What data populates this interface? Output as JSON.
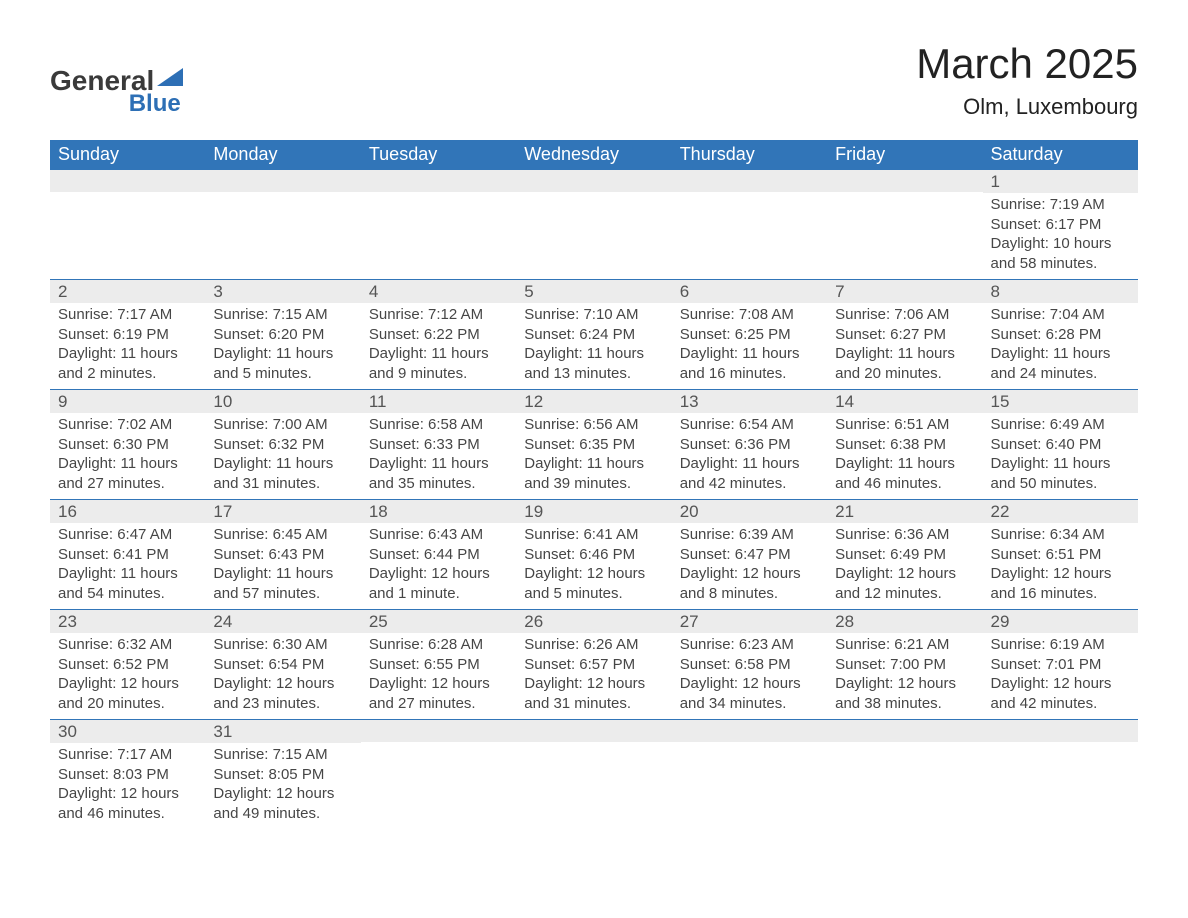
{
  "logo": {
    "line1": "General",
    "line2": "Blue"
  },
  "title": "March 2025",
  "subtitle": "Olm, Luxembourg",
  "weekdays": [
    "Sunday",
    "Monday",
    "Tuesday",
    "Wednesday",
    "Thursday",
    "Friday",
    "Saturday"
  ],
  "colors": {
    "header_bg": "#3175b8",
    "header_text": "#ffffff",
    "daynum_bg": "#ececec",
    "row_border": "#3175b8",
    "body_text": "#464646",
    "logo_blue": "#2d6fb5"
  },
  "fontsizes": {
    "title": 42,
    "subtitle": 22,
    "weekday": 18,
    "daynum": 17,
    "body": 15
  },
  "weeks": [
    [
      null,
      null,
      null,
      null,
      null,
      null,
      {
        "n": "1",
        "sunrise": "7:19 AM",
        "sunset": "6:17 PM",
        "daylight": "10 hours and 58 minutes."
      }
    ],
    [
      {
        "n": "2",
        "sunrise": "7:17 AM",
        "sunset": "6:19 PM",
        "daylight": "11 hours and 2 minutes."
      },
      {
        "n": "3",
        "sunrise": "7:15 AM",
        "sunset": "6:20 PM",
        "daylight": "11 hours and 5 minutes."
      },
      {
        "n": "4",
        "sunrise": "7:12 AM",
        "sunset": "6:22 PM",
        "daylight": "11 hours and 9 minutes."
      },
      {
        "n": "5",
        "sunrise": "7:10 AM",
        "sunset": "6:24 PM",
        "daylight": "11 hours and 13 minutes."
      },
      {
        "n": "6",
        "sunrise": "7:08 AM",
        "sunset": "6:25 PM",
        "daylight": "11 hours and 16 minutes."
      },
      {
        "n": "7",
        "sunrise": "7:06 AM",
        "sunset": "6:27 PM",
        "daylight": "11 hours and 20 minutes."
      },
      {
        "n": "8",
        "sunrise": "7:04 AM",
        "sunset": "6:28 PM",
        "daylight": "11 hours and 24 minutes."
      }
    ],
    [
      {
        "n": "9",
        "sunrise": "7:02 AM",
        "sunset": "6:30 PM",
        "daylight": "11 hours and 27 minutes."
      },
      {
        "n": "10",
        "sunrise": "7:00 AM",
        "sunset": "6:32 PM",
        "daylight": "11 hours and 31 minutes."
      },
      {
        "n": "11",
        "sunrise": "6:58 AM",
        "sunset": "6:33 PM",
        "daylight": "11 hours and 35 minutes."
      },
      {
        "n": "12",
        "sunrise": "6:56 AM",
        "sunset": "6:35 PM",
        "daylight": "11 hours and 39 minutes."
      },
      {
        "n": "13",
        "sunrise": "6:54 AM",
        "sunset": "6:36 PM",
        "daylight": "11 hours and 42 minutes."
      },
      {
        "n": "14",
        "sunrise": "6:51 AM",
        "sunset": "6:38 PM",
        "daylight": "11 hours and 46 minutes."
      },
      {
        "n": "15",
        "sunrise": "6:49 AM",
        "sunset": "6:40 PM",
        "daylight": "11 hours and 50 minutes."
      }
    ],
    [
      {
        "n": "16",
        "sunrise": "6:47 AM",
        "sunset": "6:41 PM",
        "daylight": "11 hours and 54 minutes."
      },
      {
        "n": "17",
        "sunrise": "6:45 AM",
        "sunset": "6:43 PM",
        "daylight": "11 hours and 57 minutes."
      },
      {
        "n": "18",
        "sunrise": "6:43 AM",
        "sunset": "6:44 PM",
        "daylight": "12 hours and 1 minute."
      },
      {
        "n": "19",
        "sunrise": "6:41 AM",
        "sunset": "6:46 PM",
        "daylight": "12 hours and 5 minutes."
      },
      {
        "n": "20",
        "sunrise": "6:39 AM",
        "sunset": "6:47 PM",
        "daylight": "12 hours and 8 minutes."
      },
      {
        "n": "21",
        "sunrise": "6:36 AM",
        "sunset": "6:49 PM",
        "daylight": "12 hours and 12 minutes."
      },
      {
        "n": "22",
        "sunrise": "6:34 AM",
        "sunset": "6:51 PM",
        "daylight": "12 hours and 16 minutes."
      }
    ],
    [
      {
        "n": "23",
        "sunrise": "6:32 AM",
        "sunset": "6:52 PM",
        "daylight": "12 hours and 20 minutes."
      },
      {
        "n": "24",
        "sunrise": "6:30 AM",
        "sunset": "6:54 PM",
        "daylight": "12 hours and 23 minutes."
      },
      {
        "n": "25",
        "sunrise": "6:28 AM",
        "sunset": "6:55 PM",
        "daylight": "12 hours and 27 minutes."
      },
      {
        "n": "26",
        "sunrise": "6:26 AM",
        "sunset": "6:57 PM",
        "daylight": "12 hours and 31 minutes."
      },
      {
        "n": "27",
        "sunrise": "6:23 AM",
        "sunset": "6:58 PM",
        "daylight": "12 hours and 34 minutes."
      },
      {
        "n": "28",
        "sunrise": "6:21 AM",
        "sunset": "7:00 PM",
        "daylight": "12 hours and 38 minutes."
      },
      {
        "n": "29",
        "sunrise": "6:19 AM",
        "sunset": "7:01 PM",
        "daylight": "12 hours and 42 minutes."
      }
    ],
    [
      {
        "n": "30",
        "sunrise": "7:17 AM",
        "sunset": "8:03 PM",
        "daylight": "12 hours and 46 minutes."
      },
      {
        "n": "31",
        "sunrise": "7:15 AM",
        "sunset": "8:05 PM",
        "daylight": "12 hours and 49 minutes."
      },
      null,
      null,
      null,
      null,
      null
    ]
  ],
  "labels": {
    "sunrise": "Sunrise: ",
    "sunset": "Sunset: ",
    "daylight": "Daylight: "
  }
}
